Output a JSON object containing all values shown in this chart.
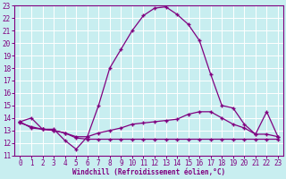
{
  "xlabel": "Windchill (Refroidissement éolien,°C)",
  "background_color": "#c8eef0",
  "grid_color": "#ffffff",
  "line_color": "#800080",
  "xlim": [
    -0.5,
    23.5
  ],
  "ylim": [
    11,
    23
  ],
  "yticks": [
    11,
    12,
    13,
    14,
    15,
    16,
    17,
    18,
    19,
    20,
    21,
    22,
    23
  ],
  "xticks": [
    0,
    1,
    2,
    3,
    4,
    5,
    6,
    7,
    8,
    9,
    10,
    11,
    12,
    13,
    14,
    15,
    16,
    17,
    18,
    19,
    20,
    21,
    22,
    23
  ],
  "series1_x": [
    0,
    1,
    2,
    3,
    4,
    5,
    6,
    7,
    8,
    9,
    10,
    11,
    12,
    13,
    14,
    15,
    16,
    17,
    18,
    19,
    20,
    21,
    22,
    23
  ],
  "series1_y": [
    13.7,
    14.0,
    13.1,
    13.1,
    12.2,
    11.5,
    12.5,
    15.0,
    18.0,
    19.5,
    21.0,
    22.2,
    22.8,
    22.9,
    22.3,
    21.5,
    20.2,
    17.5,
    15.0,
    14.8,
    13.5,
    12.7,
    14.5,
    12.5
  ],
  "series2_x": [
    0,
    1,
    2,
    3,
    4,
    5,
    6,
    7,
    8,
    9,
    10,
    11,
    12,
    13,
    14,
    15,
    16,
    17,
    18,
    19,
    20,
    21,
    22,
    23
  ],
  "series2_y": [
    13.6,
    13.3,
    13.1,
    13.0,
    12.8,
    12.4,
    12.3,
    12.3,
    12.3,
    12.3,
    12.3,
    12.3,
    12.3,
    12.3,
    12.3,
    12.3,
    12.3,
    12.3,
    12.3,
    12.3,
    12.3,
    12.3,
    12.3,
    12.3
  ],
  "series3_x": [
    0,
    1,
    2,
    3,
    4,
    5,
    6,
    7,
    8,
    9,
    10,
    11,
    12,
    13,
    14,
    15,
    16,
    17,
    18,
    19,
    20,
    21,
    22,
    23
  ],
  "series3_y": [
    13.7,
    13.2,
    13.1,
    13.0,
    12.8,
    12.5,
    12.5,
    12.8,
    13.0,
    13.2,
    13.5,
    13.6,
    13.7,
    13.8,
    13.9,
    14.3,
    14.5,
    14.5,
    14.0,
    13.5,
    13.2,
    12.7,
    12.7,
    12.5
  ],
  "tick_fontsize": 5.5,
  "label_fontsize": 5.5
}
